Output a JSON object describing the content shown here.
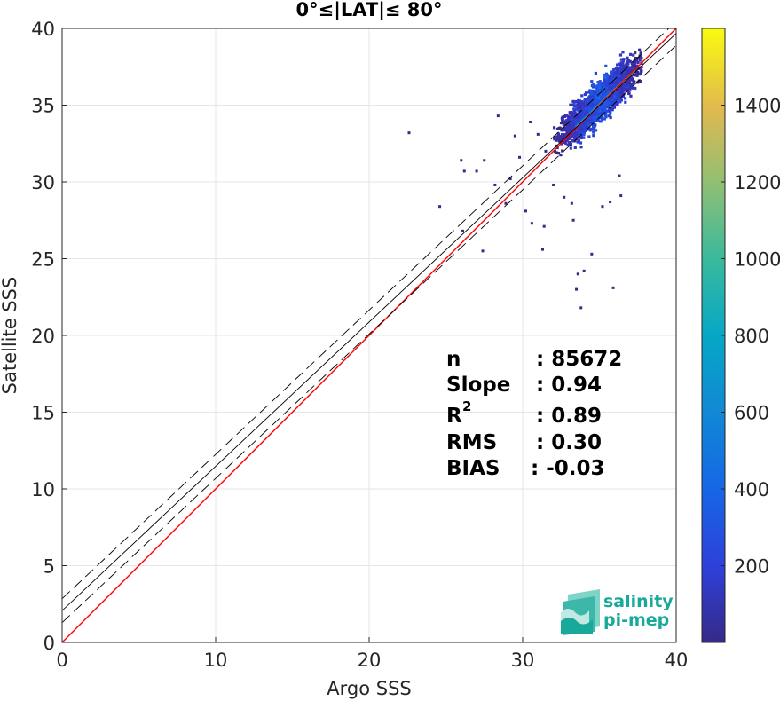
{
  "chart_data": {
    "type": "scatter",
    "subtype": "density-heatmap",
    "title": "0°≤|LAT|≤ 80°",
    "xlabel": "Argo SSS",
    "ylabel": "Satellite SSS",
    "xlim": [
      0,
      40
    ],
    "ylim": [
      0,
      40
    ],
    "xticks": [
      "0",
      "10",
      "20",
      "30",
      "40"
    ],
    "yticks": [
      "0",
      "5",
      "10",
      "15",
      "20",
      "25",
      "30",
      "35",
      "40"
    ],
    "grid": true,
    "colorbar": {
      "range": [
        0,
        1600
      ],
      "ticks": [
        "200",
        "400",
        "600",
        "800",
        "1000",
        "1200",
        "1400"
      ],
      "colormap": "parula"
    },
    "lines": [
      {
        "name": "1:1",
        "color": "#ff0000",
        "style": "solid",
        "x": [
          0,
          40
        ],
        "y": [
          0,
          40
        ]
      },
      {
        "name": "regression fit",
        "color": "#000000",
        "style": "solid",
        "x": [
          0,
          40
        ],
        "y": [
          2.07,
          39.67
        ]
      },
      {
        "name": "fit upper bound",
        "color": "#000000",
        "style": "dashed",
        "x": [
          0,
          40
        ],
        "y": [
          2.85,
          40.45
        ]
      },
      {
        "name": "fit lower bound",
        "color": "#000000",
        "style": "dashed",
        "x": [
          0,
          40
        ],
        "y": [
          1.29,
          38.89
        ]
      }
    ],
    "density_core": {
      "x_range": [
        32.0,
        37.8
      ],
      "center": [
        35.0,
        35.2
      ],
      "peak_count": 1600
    },
    "outliers": [
      [
        22.6,
        33.2
      ],
      [
        24.6,
        28.4
      ],
      [
        26.1,
        26.8
      ],
      [
        27.4,
        25.5
      ],
      [
        28.4,
        34.3
      ],
      [
        26.0,
        31.4
      ],
      [
        26.2,
        30.7
      ],
      [
        27.0,
        30.7
      ],
      [
        27.5,
        31.4
      ],
      [
        28.2,
        29.8
      ],
      [
        28.9,
        28.6
      ],
      [
        29.2,
        30.2
      ],
      [
        29.8,
        31.6
      ],
      [
        30.2,
        28.1
      ],
      [
        30.6,
        27.3
      ],
      [
        31.3,
        25.6
      ],
      [
        31.4,
        27.1
      ],
      [
        32.7,
        29.0
      ],
      [
        33.2,
        28.6
      ],
      [
        33.3,
        27.5
      ],
      [
        33.6,
        24.0
      ],
      [
        34.0,
        24.2
      ],
      [
        34.5,
        25.3
      ],
      [
        33.5,
        23.0
      ],
      [
        33.8,
        21.8
      ],
      [
        35.9,
        23.1
      ],
      [
        35.2,
        28.4
      ],
      [
        35.7,
        28.7
      ],
      [
        36.4,
        29.1
      ],
      [
        31.0,
        33.1
      ],
      [
        31.5,
        32.0
      ],
      [
        30.5,
        33.9
      ],
      [
        29.5,
        33.0
      ],
      [
        32.0,
        29.8
      ],
      [
        36.3,
        30.4
      ]
    ],
    "stats": {
      "labels": [
        "n",
        "Slope",
        "R",
        "RMS",
        "BIAS"
      ],
      "values": [
        ": 85672",
        ": 0.94",
        ": 0.89",
        ": 0.30",
        ": -0.03"
      ],
      "r_superscript": "2"
    }
  },
  "logo": {
    "line1": "salinity",
    "line2": "pi-mep"
  },
  "colors": {
    "one_to_one": "#ff0000",
    "fit": "#000000",
    "grid": "#e6e6e6",
    "axis": "#262626",
    "logo_accent": "#19a99a"
  }
}
